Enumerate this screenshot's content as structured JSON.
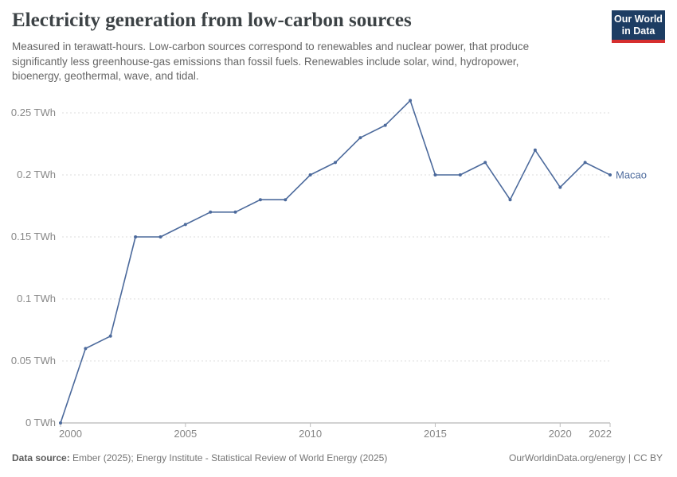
{
  "header": {
    "title": "Electricity generation from low-carbon sources",
    "subtitle_lines": [
      "Measured in terawatt-hours. Low-carbon sources correspond to renewables and nuclear power, that produce",
      "significantly less greenhouse-gas emissions than fossil fuels. Renewables include solar, wind, hydropower,",
      "bioenergy, geothermal, wave, and tidal."
    ],
    "logo": {
      "line1": "Our World",
      "line2": "in Data",
      "bg_color": "#1d3d63",
      "accent_color": "#d62f2f"
    }
  },
  "chart_data": {
    "type": "line",
    "title": "Electricity generation from low-carbon sources",
    "unit": "TWh",
    "x": [
      2000,
      2001,
      2002,
      2003,
      2004,
      2005,
      2006,
      2007,
      2008,
      2009,
      2010,
      2011,
      2012,
      2013,
      2014,
      2015,
      2016,
      2017,
      2018,
      2019,
      2020,
      2021,
      2022
    ],
    "series": [
      {
        "name": "Macao",
        "color": "#4C6A9C",
        "values": [
          0,
          0.06,
          0.07,
          0.15,
          0.15,
          0.16,
          0.17,
          0.17,
          0.18,
          0.18,
          0.2,
          0.21,
          0.23,
          0.24,
          0.26,
          0.2,
          0.2,
          0.21,
          0.18,
          0.22,
          0.19,
          0.21,
          0.2
        ]
      }
    ],
    "xlim": [
      2000,
      2022
    ],
    "ylim": [
      0,
      0.26
    ],
    "yticks": [
      0,
      0.05,
      0.1,
      0.15,
      0.2,
      0.25
    ],
    "ytick_labels": [
      "0 TWh",
      "0.05 TWh",
      "0.1 TWh",
      "0.15 TWh",
      "0.2 TWh",
      "0.25 TWh"
    ],
    "xticks": [
      2000,
      2005,
      2010,
      2015,
      2020,
      2022
    ],
    "xtick_labels": [
      "2000",
      "2005",
      "2010",
      "2015",
      "2020",
      "2022"
    ],
    "grid": "horizontal-dashed",
    "legend": "series-label-right"
  },
  "footer": {
    "source_label": "Data source:",
    "source_text": " Ember (2025); Energy Institute - Statistical Review of World Energy (2025)",
    "credit": "OurWorldinData.org/energy | CC BY"
  }
}
